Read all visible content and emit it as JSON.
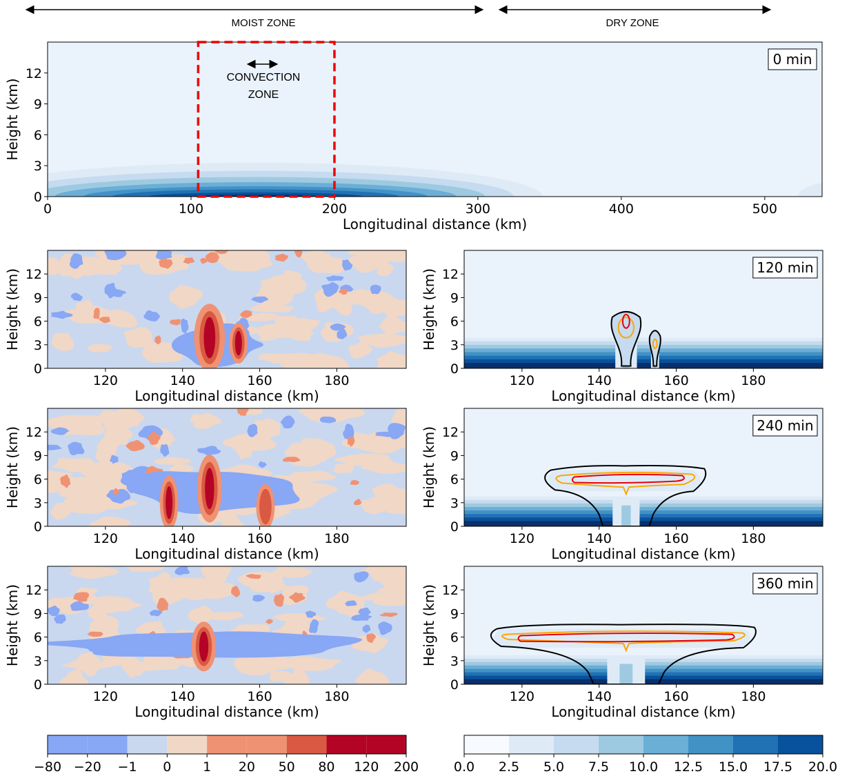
{
  "header": {
    "moist_zone": "MOIST ZONE",
    "dry_zone": "DRY ZONE"
  },
  "annotations": {
    "convection_line1": "CONVECTION",
    "convection_line2": "ZONE"
  },
  "colors": {
    "moisture_scale": [
      "#f7fbff",
      "#deebf7",
      "#c6dbef",
      "#9ecae1",
      "#6baed6",
      "#4292c6",
      "#2171b5",
      "#08519c",
      "#08306b"
    ],
    "anomaly_scale": [
      "#88a7f4",
      "#c9d8ef",
      "#f1d7c6",
      "#ef9273",
      "#d95942",
      "#b40426"
    ],
    "cloud_outline": "#000000",
    "contour_orange": "#ffa500",
    "contour_red": "#e8000b",
    "convection_box": "#ee0000"
  },
  "chart_data": [
    {
      "id": "top",
      "type": "heatmap",
      "title": "",
      "xlabel": "Longitudinal distance (km)",
      "ylabel": "Height (km)",
      "xlim": [
        0,
        540
      ],
      "ylim": [
        0,
        15
      ],
      "xticks": [
        "0",
        "100",
        "200",
        "300",
        "400",
        "500"
      ],
      "yticks": [
        "0",
        "3",
        "6",
        "9",
        "12"
      ],
      "time_label": "0 min",
      "colorbar": "moisture",
      "convection_zone_x": [
        105,
        200
      ],
      "moisture_center_km": 145,
      "moisture_surface_max": 20,
      "moisture_shells": [
        {
          "level": 2.5,
          "half_width_km": 200,
          "top_km": 3.3
        },
        {
          "level": 5.0,
          "half_width_km": 180,
          "top_km": 2.5
        },
        {
          "level": 7.5,
          "half_width_km": 160,
          "top_km": 1.9
        },
        {
          "level": 10.0,
          "half_width_km": 140,
          "top_km": 1.4
        },
        {
          "level": 12.5,
          "half_width_km": 120,
          "top_km": 1.0
        },
        {
          "level": 15.0,
          "half_width_km": 100,
          "top_km": 0.7
        },
        {
          "level": 17.5,
          "half_width_km": 75,
          "top_km": 0.4
        },
        {
          "level": 20.0,
          "half_width_km": 45,
          "top_km": 0.2
        }
      ]
    },
    {
      "id": "anom-120",
      "type": "heatmap",
      "xlabel": "Longitudinal distance (km)",
      "ylabel": "Height (km)",
      "xlim": [
        105,
        198
      ],
      "ylim": [
        0,
        15
      ],
      "xticks": [
        "120",
        "140",
        "160",
        "180"
      ],
      "yticks": [
        "0",
        "3",
        "6",
        "9",
        "12"
      ],
      "colorbar": "anomaly",
      "cores": [
        {
          "x": 147,
          "y": 3.9,
          "width_km": 5,
          "height_km": 7.5,
          "peak": 200
        },
        {
          "x": 154.5,
          "y": 3.2,
          "width_km": 3,
          "height_km": 4.5,
          "peak": 120
        }
      ],
      "downdrafts": [
        {
          "x": 148,
          "y": 3.0,
          "width_km": 28,
          "height_km": 5
        }
      ]
    },
    {
      "id": "moist-120",
      "type": "heatmap",
      "xlabel": "Longitudinal distance (km)",
      "ylabel": "Height (km)",
      "xlim": [
        105,
        198
      ],
      "ylim": [
        0,
        15
      ],
      "xticks": [
        "120",
        "140",
        "160",
        "180"
      ],
      "yticks": [
        "0",
        "3",
        "6",
        "9",
        "12"
      ],
      "time_label": "120 min",
      "colorbar": "moisture",
      "layer_top_km": 3.9,
      "cloud": {
        "towers": [
          {
            "x": 147,
            "top_km": 7.2,
            "width_km": 8
          },
          {
            "x": 154.5,
            "top_km": 4.8,
            "width_km": 3
          }
        ]
      }
    },
    {
      "id": "anom-240",
      "type": "heatmap",
      "xlabel": "Longitudinal distance (km)",
      "ylabel": "Height (km)",
      "xlim": [
        105,
        198
      ],
      "ylim": [
        0,
        15
      ],
      "xticks": [
        "120",
        "140",
        "160",
        "180"
      ],
      "yticks": [
        "0",
        "3",
        "6",
        "9",
        "12"
      ],
      "colorbar": "anomaly",
      "cores": [
        {
          "x": 147,
          "y": 4.8,
          "width_km": 4,
          "height_km": 7.5,
          "peak": 200
        },
        {
          "x": 136.5,
          "y": 3.0,
          "width_km": 3,
          "height_km": 6,
          "peak": 120
        },
        {
          "x": 161.5,
          "y": 2.5,
          "width_km": 3,
          "height_km": 5,
          "peak": 50
        }
      ],
      "downdrafts": [
        {
          "x": 148,
          "y": 4.5,
          "width_km": 45,
          "height_km": 6
        }
      ]
    },
    {
      "id": "moist-240",
      "type": "heatmap",
      "xlabel": "Longitudinal distance (km)",
      "ylabel": "Height (km)",
      "xlim": [
        105,
        198
      ],
      "ylim": [
        0,
        15
      ],
      "xticks": [
        "120",
        "140",
        "160",
        "180"
      ],
      "yticks": [
        "0",
        "3",
        "6",
        "9",
        "12"
      ],
      "time_label": "240 min",
      "colorbar": "moisture",
      "layer_top_km": 3.8,
      "cloud": {
        "anvil_x": [
          125,
          168
        ],
        "anvil_y": [
          4.8,
          7.5
        ],
        "towers": [
          {
            "x": 147,
            "top_km": 7.5,
            "width_km": 10
          }
        ]
      }
    },
    {
      "id": "anom-360",
      "type": "heatmap",
      "xlabel": "Longitudinal distance (km)",
      "ylabel": "Height (km)",
      "xlim": [
        105,
        198
      ],
      "ylim": [
        0,
        15
      ],
      "xticks": [
        "120",
        "140",
        "160",
        "180"
      ],
      "yticks": [
        "0",
        "3",
        "6",
        "9",
        "12"
      ],
      "colorbar": "anomaly",
      "cores": [
        {
          "x": 145.5,
          "y": 4.8,
          "width_km": 4,
          "height_km": 5.5,
          "peak": 200
        }
      ],
      "downdrafts": [
        {
          "x": 148,
          "y": 5.2,
          "width_km": 85,
          "height_km": 3.5
        }
      ]
    },
    {
      "id": "moist-360",
      "type": "heatmap",
      "xlabel": "Longitudinal distance (km)",
      "ylabel": "Height (km)",
      "xlim": [
        105,
        198
      ],
      "ylim": [
        0,
        15
      ],
      "xticks": [
        "120",
        "140",
        "160",
        "180"
      ],
      "yticks": [
        "0",
        "3",
        "6",
        "9",
        "12"
      ],
      "time_label": "360 min",
      "colorbar": "moisture",
      "layer_top_km": 3.7,
      "cloud": {
        "anvil_x": [
          111,
          181
        ],
        "anvil_y": [
          5.0,
          7.4
        ],
        "towers": [
          {
            "x": 147,
            "top_km": 7.4,
            "width_km": 14
          }
        ]
      }
    }
  ],
  "colorbars": {
    "anomaly": {
      "ticks": [
        "−80",
        "−20",
        "−1",
        "0",
        "1",
        "20",
        "50",
        "80",
        "120",
        "200"
      ]
    },
    "moisture": {
      "ticks": [
        "0.0",
        "2.5",
        "5.0",
        "7.5",
        "10.0",
        "12.5",
        "15.0",
        "17.5",
        "20.0"
      ]
    }
  }
}
